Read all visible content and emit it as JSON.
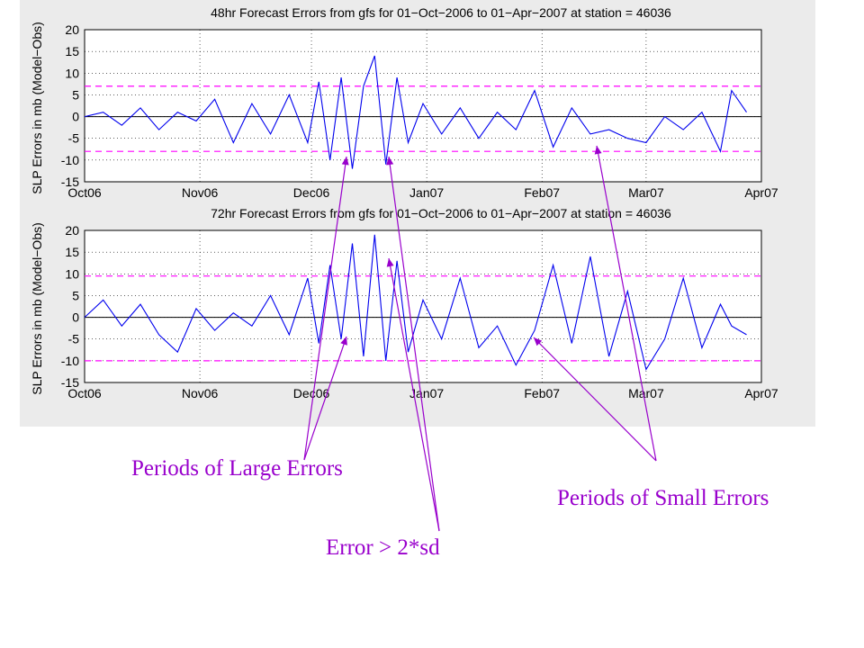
{
  "colors": {
    "series": "#0000ee",
    "threshold": "#ff00ff",
    "annotation": "#9900cc",
    "background": "#ebebeb"
  },
  "chart_data": [
    {
      "type": "line",
      "title": "48hr Forecast Errors from gfs for 01−Oct−2006 to 01−Apr−2007 at station = 46036",
      "ylabel": "SLP Errors in mb (Model−Obs)",
      "x_ticks": [
        "Oct06",
        "Nov06",
        "Dec06",
        "Jan07",
        "Feb07",
        "Mar07",
        "Apr07"
      ],
      "x_range": [
        "2006-10-01",
        "2007-04-01"
      ],
      "ylim": [
        -15,
        20
      ],
      "y_ticks": [
        20,
        15,
        10,
        5,
        0,
        -5,
        -10,
        -15
      ],
      "thresholds": [
        7,
        -8
      ],
      "grid": true,
      "x_dates": [
        "2006-10-01",
        "2006-10-06",
        "2006-10-11",
        "2006-10-16",
        "2006-10-21",
        "2006-10-26",
        "2006-10-31",
        "2006-11-05",
        "2006-11-10",
        "2006-11-15",
        "2006-11-20",
        "2006-11-25",
        "2006-11-30",
        "2006-12-03",
        "2006-12-06",
        "2006-12-09",
        "2006-12-12",
        "2006-12-15",
        "2006-12-18",
        "2006-12-21",
        "2006-12-24",
        "2006-12-27",
        "2006-12-31",
        "2007-01-05",
        "2007-01-10",
        "2007-01-15",
        "2007-01-20",
        "2007-01-25",
        "2007-01-30",
        "2007-02-04",
        "2007-02-09",
        "2007-02-14",
        "2007-02-19",
        "2007-02-24",
        "2007-03-01",
        "2007-03-06",
        "2007-03-11",
        "2007-03-16",
        "2007-03-21",
        "2007-03-24",
        "2007-03-28"
      ],
      "values": [
        0,
        1,
        -2,
        2,
        -3,
        1,
        -1,
        4,
        -6,
        3,
        -4,
        5,
        -6,
        8,
        -10,
        9,
        -12,
        7,
        14,
        -11,
        9,
        -6,
        3,
        -4,
        2,
        -5,
        1,
        -3,
        6,
        -7,
        2,
        -4,
        -3,
        -5,
        -6,
        0,
        -3,
        1,
        -8,
        6,
        1
      ]
    },
    {
      "type": "line",
      "title": "72hr Forecast Errors from gfs for 01−Oct−2006 to 01−Apr−2007 at station = 46036",
      "ylabel": "SLP Errors in mb (Model−Obs)",
      "x_ticks": [
        "Oct06",
        "Nov06",
        "Dec06",
        "Jan07",
        "Feb07",
        "Mar07",
        "Apr07"
      ],
      "x_range": [
        "2006-10-01",
        "2007-04-01"
      ],
      "ylim": [
        -15,
        20
      ],
      "y_ticks": [
        20,
        15,
        10,
        5,
        0,
        -5,
        -10,
        -15
      ],
      "thresholds": [
        9.5,
        -10
      ],
      "grid": true,
      "x_dates": [
        "2006-10-01",
        "2006-10-06",
        "2006-10-11",
        "2006-10-16",
        "2006-10-21",
        "2006-10-26",
        "2006-10-31",
        "2006-11-05",
        "2006-11-10",
        "2006-11-15",
        "2006-11-20",
        "2006-11-25",
        "2006-11-30",
        "2006-12-03",
        "2006-12-06",
        "2006-12-09",
        "2006-12-12",
        "2006-12-15",
        "2006-12-18",
        "2006-12-21",
        "2006-12-24",
        "2006-12-27",
        "2006-12-31",
        "2007-01-05",
        "2007-01-10",
        "2007-01-15",
        "2007-01-20",
        "2007-01-25",
        "2007-01-30",
        "2007-02-04",
        "2007-02-09",
        "2007-02-14",
        "2007-02-19",
        "2007-02-24",
        "2007-03-01",
        "2007-03-06",
        "2007-03-11",
        "2007-03-16",
        "2007-03-21",
        "2007-03-24",
        "2007-03-28"
      ],
      "values": [
        0,
        4,
        -2,
        3,
        -4,
        -8,
        2,
        -3,
        1,
        -2,
        5,
        -4,
        9,
        -6,
        12,
        -5,
        17,
        -9,
        19,
        -10,
        13,
        -8,
        4,
        -5,
        9,
        -7,
        -2,
        -11,
        -3,
        12,
        -6,
        14,
        -9,
        6,
        -12,
        -5,
        9,
        -7,
        3,
        -2,
        -4
      ]
    }
  ],
  "annotations": {
    "large_errors": "Periods of Large Errors",
    "error_sd": "Error > 2*sd",
    "small_errors": "Periods of Small Errors"
  }
}
